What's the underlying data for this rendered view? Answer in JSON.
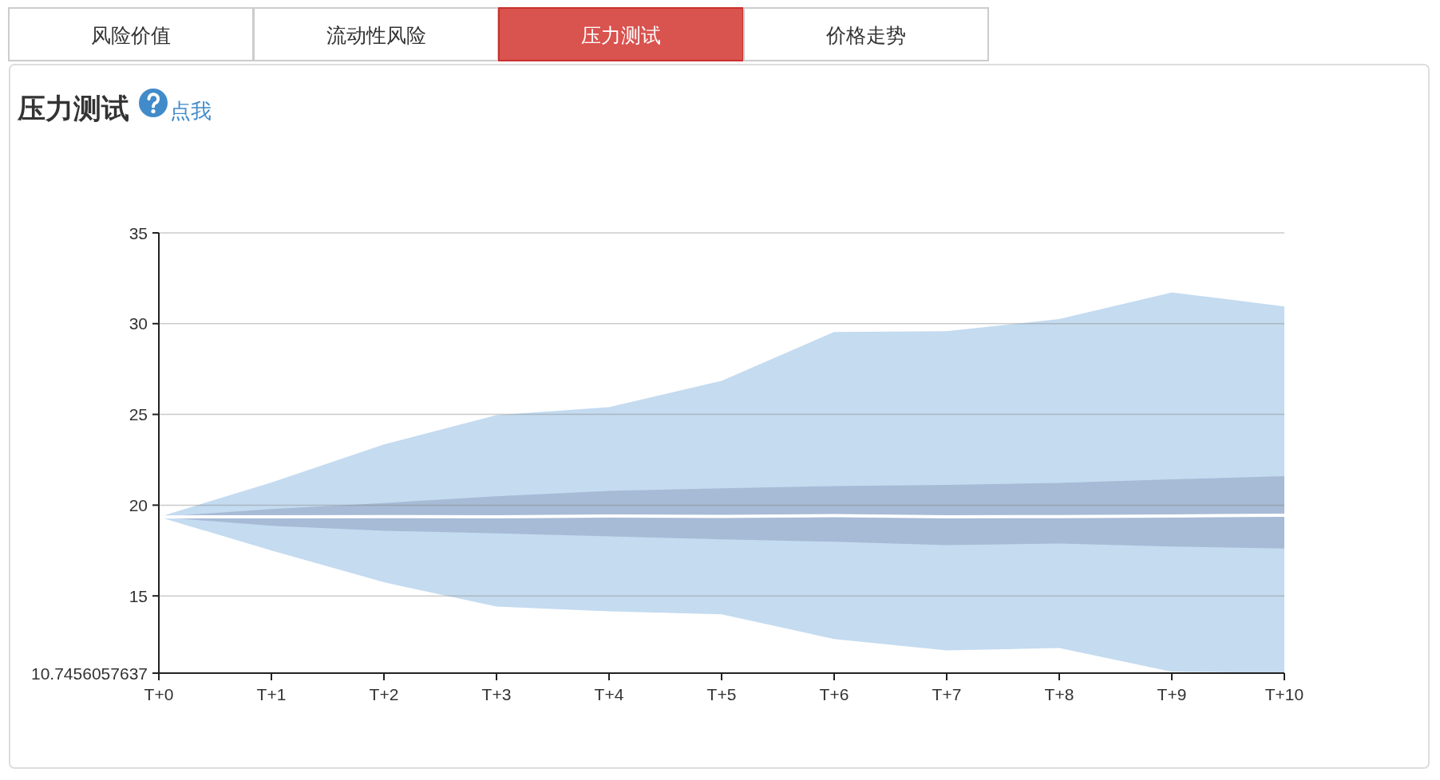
{
  "chart_data": {
    "type": "line",
    "title": "压力测试",
    "annotations": [
      "风险价值",
      "流动性风险",
      "压力测试",
      "价格走势",
      "点我"
    ],
    "categories": [
      "T+0",
      "T+1",
      "T+2",
      "T+3",
      "T+4",
      "T+5",
      "T+6",
      "T+7",
      "T+8",
      "T+9",
      "T+10"
    ],
    "series": [
      {
        "type": "area",
        "color": "#c4dbf0",
        "values": [
          null,
          null,
          null,
          null,
          null,
          null,
          null,
          null,
          null,
          null,
          null
        ],
        "lower": [
          19.35,
          17.5,
          15.75,
          14.41,
          14.15,
          13.99,
          12.62,
          12.0,
          12.13,
          10.82,
          10.76
        ],
        "upper": [
          19.35,
          21.25,
          23.34,
          24.96,
          25.4,
          26.85,
          29.54,
          29.58,
          30.26,
          31.72,
          30.95
        ]
      },
      {
        "type": "area",
        "color": "#a7bbd6",
        "values": [
          null,
          null,
          null,
          null,
          null,
          null,
          null,
          null,
          null,
          null,
          null
        ],
        "lower": [
          19.35,
          18.86,
          18.59,
          18.45,
          18.28,
          18.12,
          17.98,
          17.8,
          17.89,
          17.72,
          17.61
        ],
        "upper": [
          19.35,
          19.79,
          20.12,
          20.49,
          20.79,
          20.93,
          21.05,
          21.11,
          21.23,
          21.42,
          21.6
        ]
      },
      {
        "type": "line",
        "color": "#ffffff",
        "values": [
          19.35,
          19.36,
          19.37,
          19.36,
          19.4,
          19.38,
          19.42,
          19.36,
          19.37,
          19.4,
          19.45
        ]
      }
    ],
    "ylim": [
      10.7456057637,
      35
    ],
    "yticks": [
      10.7456057637,
      15,
      20,
      25,
      30,
      35
    ],
    "grid": "y"
  }
}
